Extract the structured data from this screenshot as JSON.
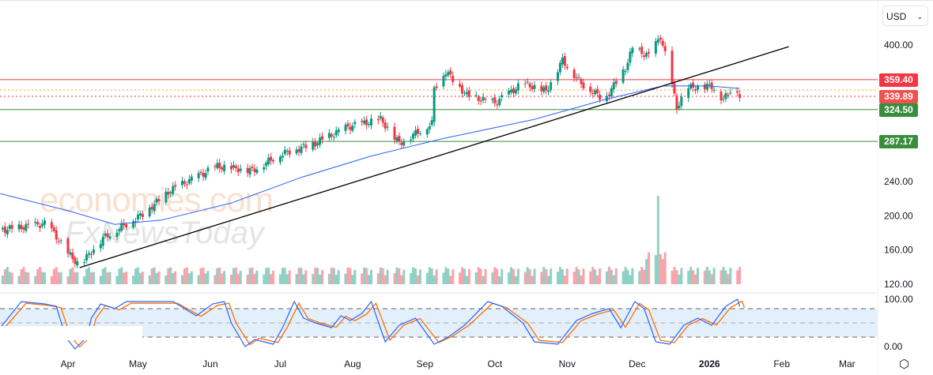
{
  "currency_select": {
    "value": "USD"
  },
  "watermark": {
    "line1": "economies.com",
    "line2": "FxNewsToday"
  },
  "colors": {
    "up": "#089981",
    "down": "#f23645",
    "ma": "#2962ff",
    "stoch_k": "#2962ff",
    "stoch_d": "#ff6d00",
    "trend": "#000000",
    "res": "#f23645",
    "sup": "#388e3c"
  },
  "chart_data": {
    "type": "candlestick",
    "y_axis_ticks": [
      "400.00",
      "240.00",
      "200.00",
      "160.00",
      "120.00"
    ],
    "ylim": [
      120,
      400
    ],
    "x_axis_ticks": [
      {
        "label": "Apr",
        "day": 0
      },
      {
        "label": "May",
        "day": 30
      },
      {
        "label": "Jun",
        "day": 61
      },
      {
        "label": "Jul",
        "day": 91
      },
      {
        "label": "Aug",
        "day": 122
      },
      {
        "label": "Sep",
        "day": 153
      },
      {
        "label": "Oct",
        "day": 183
      },
      {
        "label": "Nov",
        "day": 214
      },
      {
        "label": "Dec",
        "day": 244
      },
      {
        "label": "2026",
        "day": 275
      },
      {
        "label": "Feb",
        "day": 306
      },
      {
        "label": "Mar",
        "day": 334
      }
    ],
    "price_path": [
      [
        -27,
        184
      ],
      [
        -9,
        191
      ],
      [
        0,
        156
      ],
      [
        5,
        142
      ],
      [
        15,
        174
      ],
      [
        32,
        202
      ],
      [
        44,
        230
      ],
      [
        64,
        258
      ],
      [
        79,
        253
      ],
      [
        91,
        272
      ],
      [
        106,
        285
      ],
      [
        120,
        304
      ],
      [
        134,
        313
      ],
      [
        142,
        285
      ],
      [
        156,
        308
      ],
      [
        157,
        350
      ],
      [
        162,
        369
      ],
      [
        171,
        341
      ],
      [
        183,
        332
      ],
      [
        195,
        355
      ],
      [
        205,
        346
      ],
      [
        212,
        382
      ],
      [
        220,
        355
      ],
      [
        230,
        336
      ],
      [
        239,
        373
      ],
      [
        242,
        396
      ],
      [
        249,
        387
      ],
      [
        254,
        410
      ],
      [
        257,
        378
      ],
      [
        261,
        327
      ],
      [
        266,
        350
      ],
      [
        276,
        352
      ],
      [
        281,
        336
      ],
      [
        286,
        355
      ],
      [
        288,
        339.89
      ]
    ],
    "moving_average": [
      [
        -29,
        226
      ],
      [
        0,
        206
      ],
      [
        20,
        190
      ],
      [
        40,
        195
      ],
      [
        70,
        215
      ],
      [
        100,
        245
      ],
      [
        130,
        270
      ],
      [
        160,
        290
      ],
      [
        200,
        313
      ],
      [
        230,
        336
      ],
      [
        255,
        352
      ],
      [
        275,
        352
      ],
      [
        288,
        349
      ]
    ],
    "trendline": [
      [
        5,
        139.4
      ],
      [
        309,
        398
      ]
    ],
    "levels": [
      {
        "label": "359.40",
        "value": 359.4,
        "kind": "resistance"
      },
      {
        "label": "339.89",
        "value": 339.89,
        "kind": "last"
      },
      {
        "label": "324.50",
        "value": 324.5,
        "kind": "support"
      },
      {
        "label": "287.17",
        "value": 287.17,
        "kind": "support"
      }
    ],
    "stochastic": {
      "axis": [
        "100.00",
        "0.00"
      ],
      "bands": [
        80,
        50,
        20
      ],
      "k": [
        [
          -29,
          40
        ],
        [
          -20,
          95
        ],
        [
          -10,
          90
        ],
        [
          -5,
          85
        ],
        [
          -1,
          20
        ],
        [
          3,
          -5
        ],
        [
          8,
          20
        ],
        [
          10,
          60
        ],
        [
          14,
          90
        ],
        [
          20,
          80
        ],
        [
          25,
          95
        ],
        [
          35,
          95
        ],
        [
          45,
          95
        ],
        [
          55,
          65
        ],
        [
          62,
          90
        ],
        [
          67,
          95
        ],
        [
          70,
          50
        ],
        [
          76,
          0
        ],
        [
          80,
          15
        ],
        [
          88,
          5
        ],
        [
          92,
          40
        ],
        [
          97,
          95
        ],
        [
          101,
          60
        ],
        [
          106,
          50
        ],
        [
          113,
          40
        ],
        [
          117,
          65
        ],
        [
          121,
          55
        ],
        [
          126,
          70
        ],
        [
          130,
          95
        ],
        [
          136,
          10
        ],
        [
          142,
          45
        ],
        [
          149,
          60
        ],
        [
          157,
          5
        ],
        [
          163,
          20
        ],
        [
          170,
          45
        ],
        [
          180,
          95
        ],
        [
          186,
          85
        ],
        [
          195,
          50
        ],
        [
          200,
          10
        ],
        [
          210,
          5
        ],
        [
          218,
          55
        ],
        [
          225,
          70
        ],
        [
          232,
          80
        ],
        [
          237,
          40
        ],
        [
          243,
          95
        ],
        [
          247,
          80
        ],
        [
          252,
          10
        ],
        [
          258,
          5
        ],
        [
          264,
          45
        ],
        [
          270,
          60
        ],
        [
          276,
          45
        ],
        [
          282,
          85
        ],
        [
          287,
          100
        ],
        [
          288,
          85
        ]
      ]
    },
    "volume_note": "volume histogram"
  }
}
